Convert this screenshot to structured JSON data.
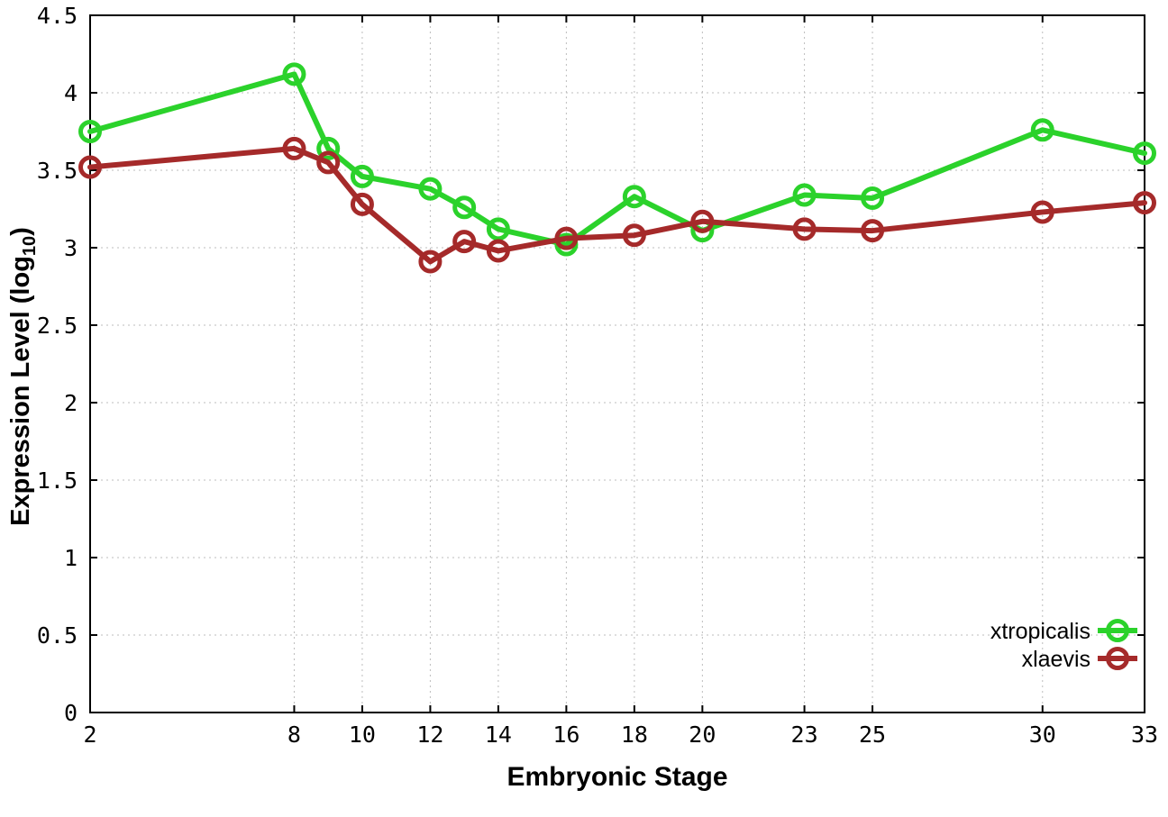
{
  "chart_data": {
    "type": "line",
    "title": "",
    "xlabel": "Embryonic Stage",
    "ylabel": "Expression Level (log10)",
    "ylabel_parts": {
      "main": "Expression Level (log",
      "sub": "10",
      "end": ")"
    },
    "xlim": [
      2,
      33
    ],
    "ylim": [
      0,
      4.5
    ],
    "xticks": [
      2,
      8,
      10,
      12,
      14,
      16,
      18,
      20,
      23,
      25,
      30,
      33
    ],
    "xtick_labels": [
      "2",
      "8",
      "10",
      "12",
      "14",
      "16",
      "18",
      "20",
      "23",
      "25",
      "30",
      "33"
    ],
    "yticks": [
      0,
      0.5,
      1,
      1.5,
      2,
      2.5,
      3,
      3.5,
      4,
      4.5
    ],
    "ytick_labels": [
      "0",
      "0.5",
      "1",
      "1.5",
      "2",
      "2.5",
      "3",
      "3.5",
      "4",
      "4.5"
    ],
    "grid": true,
    "legend_position": "bottom-right",
    "x": [
      2,
      8,
      9,
      10,
      12,
      13,
      14,
      16,
      18,
      20,
      23,
      25,
      30,
      33
    ],
    "series": [
      {
        "name": "xtropicalis",
        "color": "#2bd22b",
        "marker": "open-circle",
        "values": [
          3.75,
          4.12,
          3.64,
          3.46,
          3.38,
          3.26,
          3.12,
          3.02,
          3.33,
          3.11,
          3.34,
          3.32,
          3.76,
          3.61
        ]
      },
      {
        "name": "xlaevis",
        "color": "#a52a2a",
        "marker": "open-circle",
        "values": [
          3.52,
          3.64,
          3.55,
          3.28,
          2.91,
          3.04,
          2.98,
          3.06,
          3.08,
          3.17,
          3.12,
          3.11,
          3.23,
          3.29
        ]
      }
    ],
    "colors": {
      "grid": "#bdbdbd",
      "axis": "#000000",
      "background": "#ffffff"
    }
  }
}
